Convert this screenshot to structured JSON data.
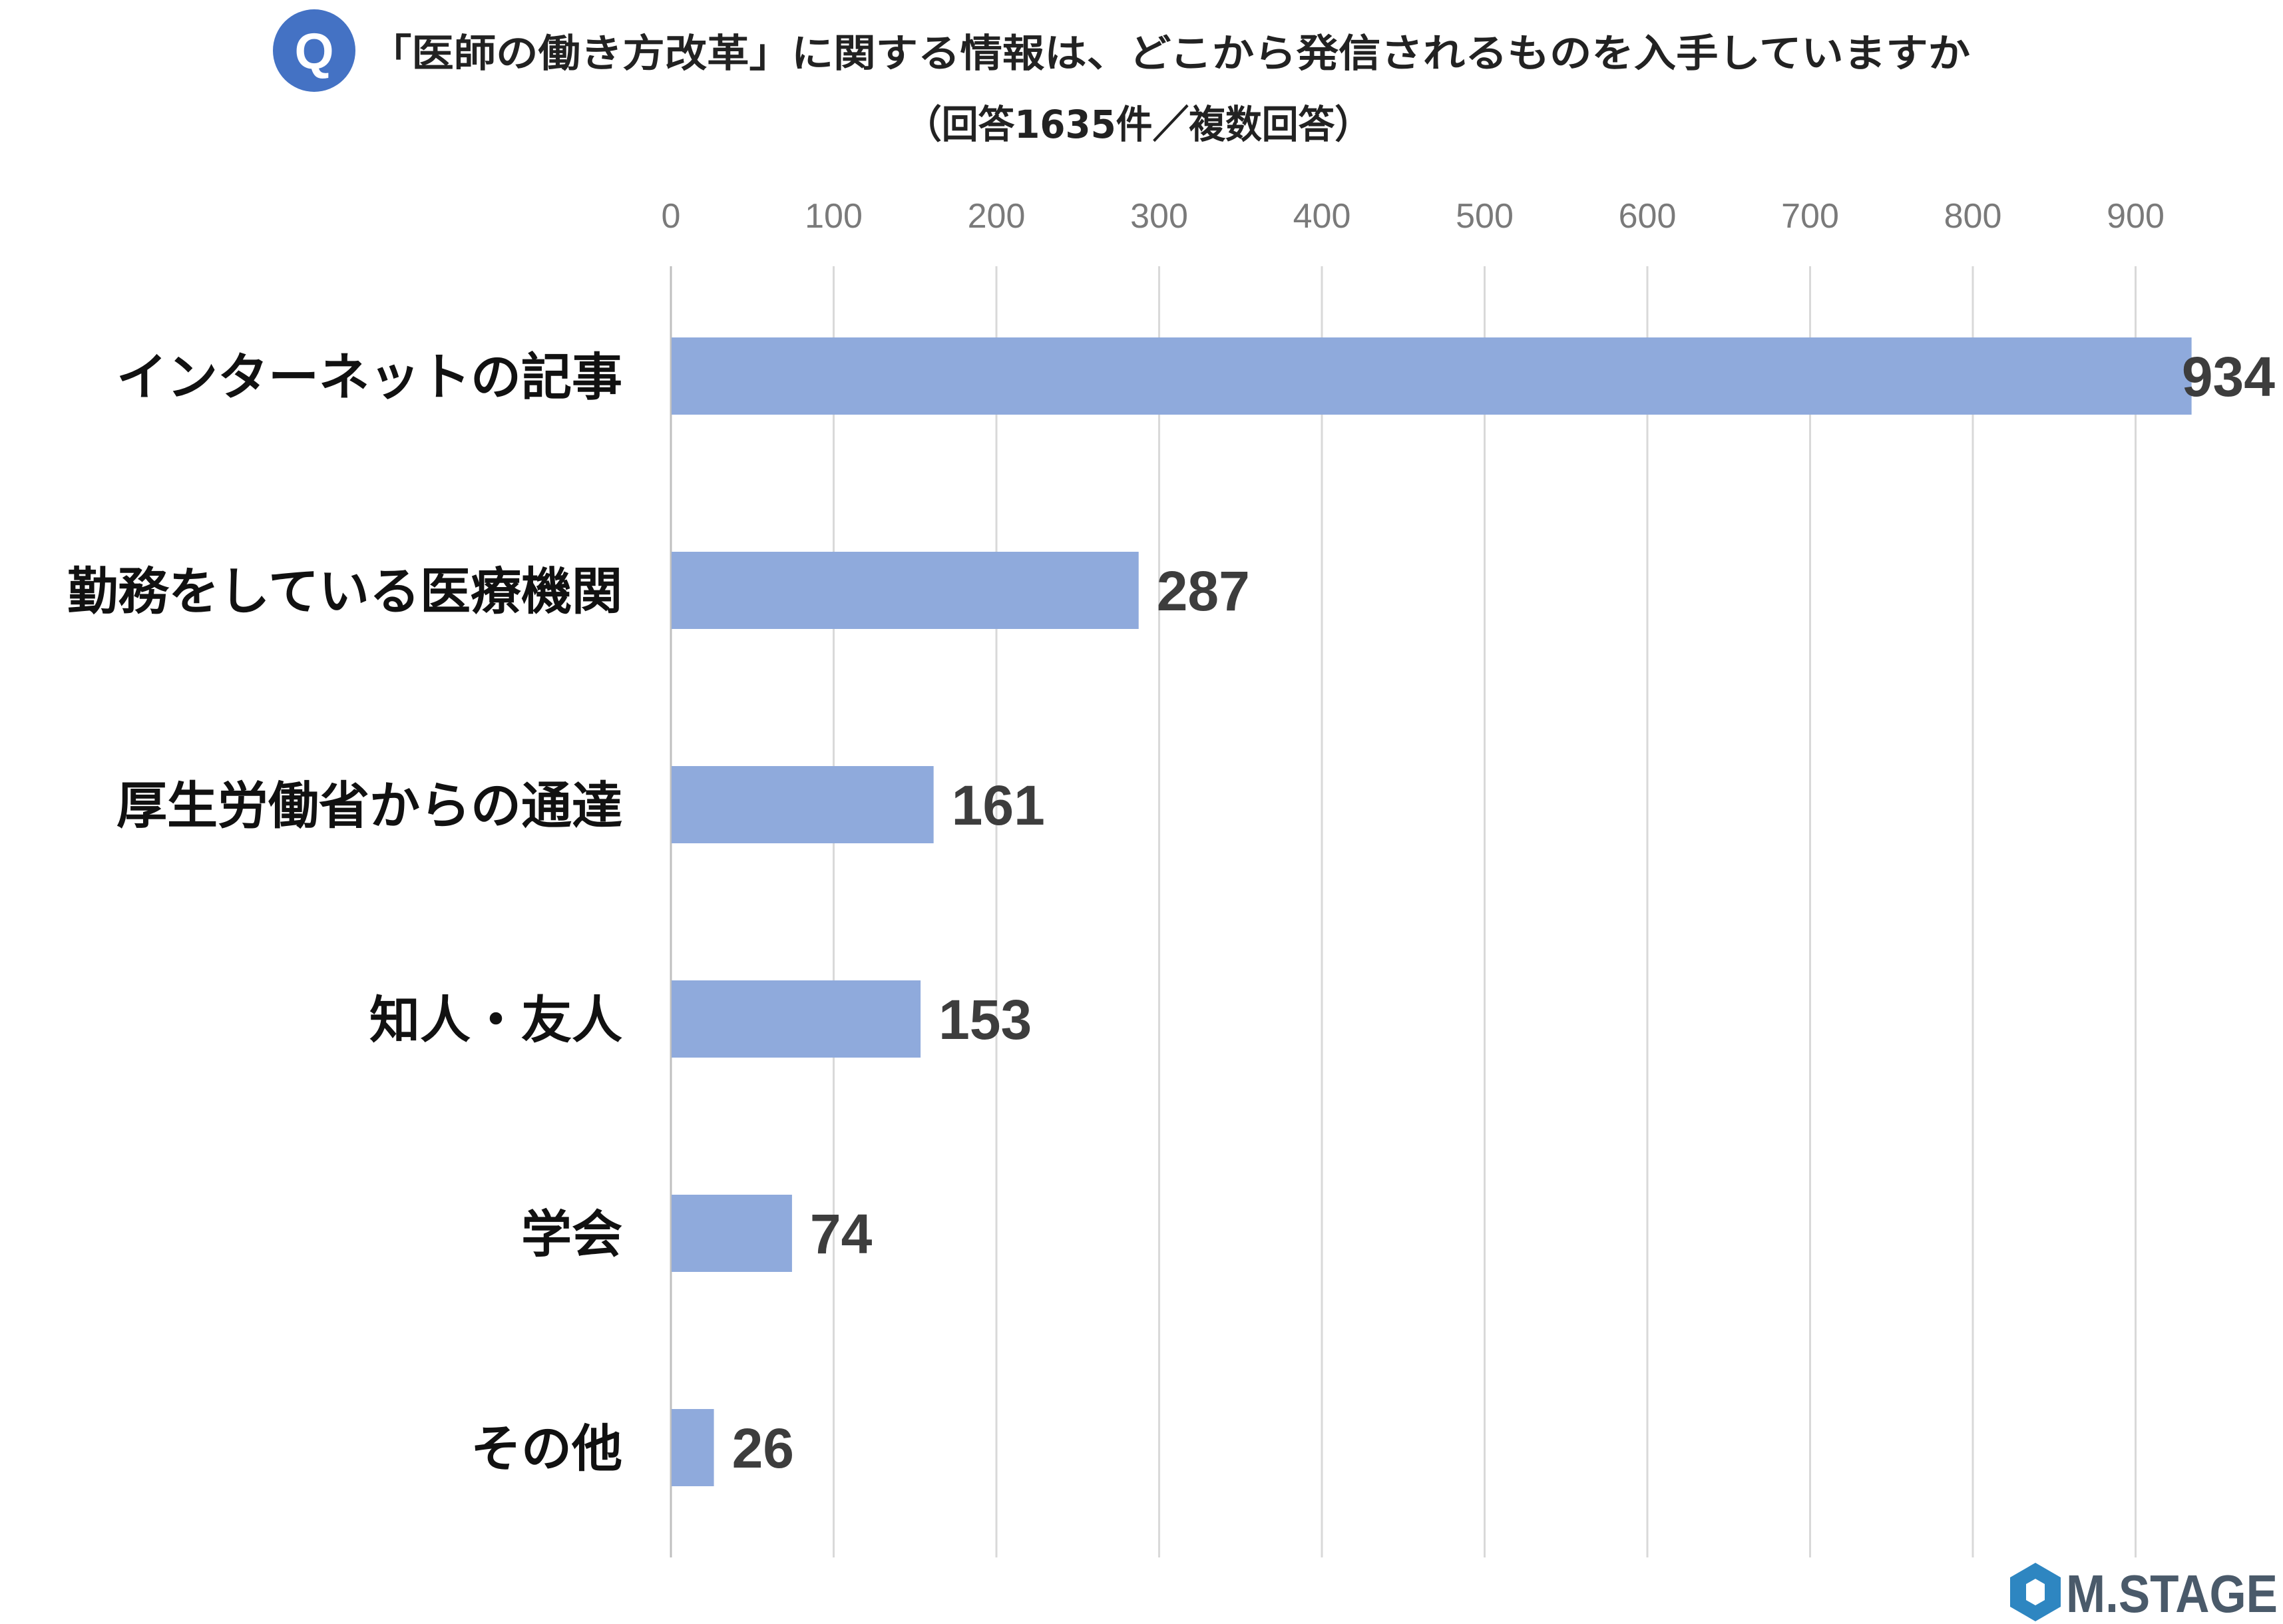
{
  "chart_data": {
    "type": "bar",
    "orientation": "horizontal",
    "title_badge": "Q",
    "title": "「医師の働き方改革」に関する情報は、どこから発信されるものを入手していますか",
    "subtitle": "（回答1635件／複数回答）",
    "categories": [
      "インターネットの記事",
      "勤務をしている医療機関",
      "厚生労働省からの通達",
      "知人・友人",
      "学会",
      "その他"
    ],
    "values": [
      934,
      287,
      161,
      153,
      74,
      26
    ],
    "value_labels": [
      "934",
      "287",
      "161",
      "153",
      "74",
      "26"
    ],
    "xlim": [
      0,
      935
    ],
    "xticks": [
      0,
      100,
      200,
      300,
      400,
      500,
      600,
      700,
      800,
      900
    ],
    "xtick_labels": [
      "0",
      "100",
      "200",
      "300",
      "400",
      "500",
      "600",
      "700",
      "800",
      "900"
    ],
    "xaxis_position": "top",
    "grid": true,
    "legend": "none",
    "bar_color": "#8faadc",
    "badge_color": "#4472c4",
    "grid_color": "#d9d9d9"
  },
  "brand": {
    "logo_text": "M.STAGE",
    "logo_icon": "hexagon-logo-icon"
  }
}
